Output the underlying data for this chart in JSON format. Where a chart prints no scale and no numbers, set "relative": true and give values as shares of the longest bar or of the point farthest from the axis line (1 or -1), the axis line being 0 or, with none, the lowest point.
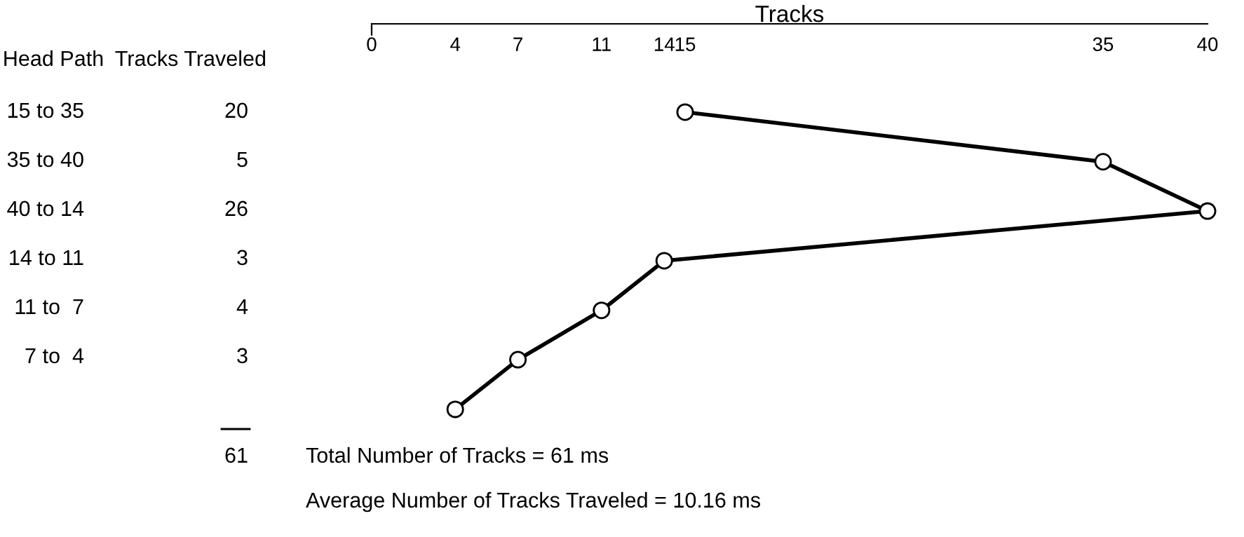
{
  "chart_data": {
    "type": "line",
    "xlabel": "Tracks",
    "relative": true,
    "xlim": [
      0,
      40
    ],
    "xticks": [
      0,
      4,
      7,
      11,
      14,
      15,
      35,
      40
    ],
    "marker": "circle",
    "line_style": "solid",
    "grid": false,
    "legend": false,
    "series": [
      {
        "color": "#000000",
        "x": [
          15,
          35,
          40,
          14,
          11,
          7,
          4
        ],
        "values": [
          1,
          0.833,
          0.667,
          0.5,
          0.333,
          0.167,
          0
        ]
      }
    ],
    "annotations": [
      "Head Path",
      "Tracks Traveled",
      "15 to 35",
      "20",
      "35 to 40",
      "5",
      "40 to 14",
      "26",
      "14 to 11",
      "3",
      "11 to  7",
      "4",
      "7 to  4",
      "3",
      "61",
      "Total Number of Tracks = 61 ms",
      "Average Number of Tracks Traveled = 10.16 ms"
    ]
  }
}
